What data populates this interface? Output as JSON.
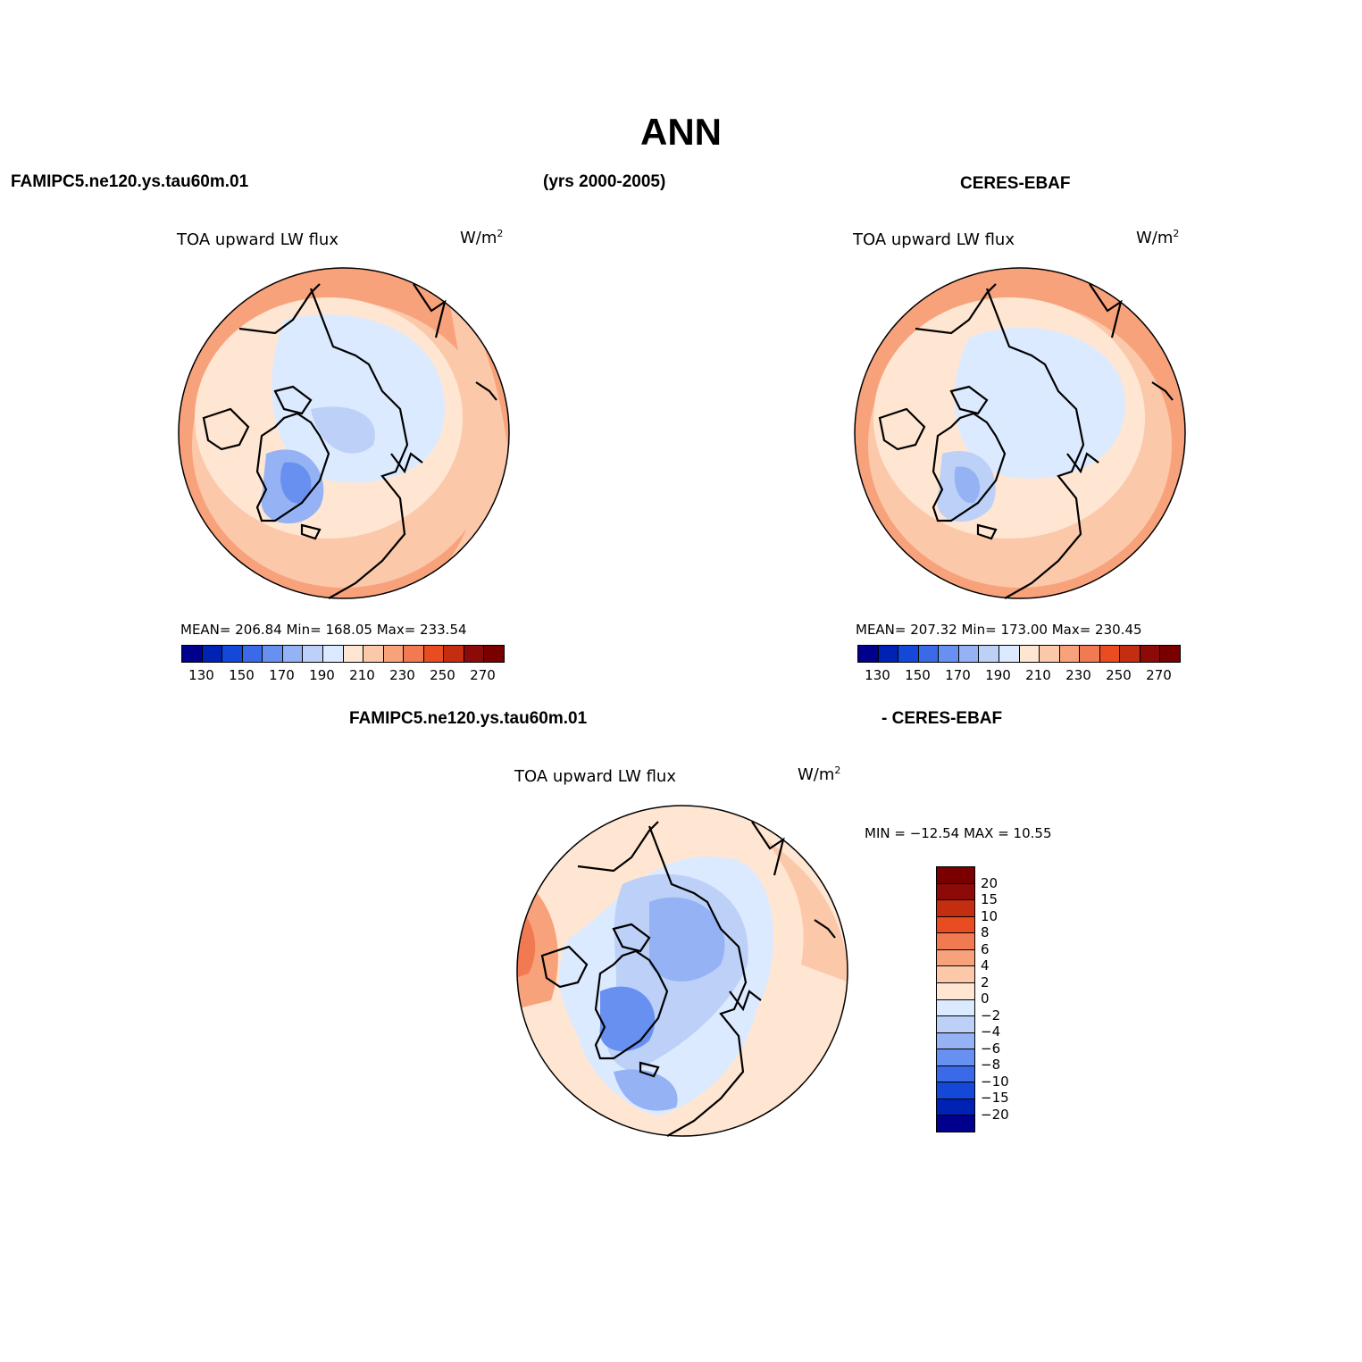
{
  "figure": {
    "title": "ANN",
    "left_header": "FAMIPC5.ne120.ys.tau60m.01",
    "years_header": "(yrs 2000-2005)",
    "right_header": "CERES-EBAF",
    "diff_header_left": "FAMIPC5.ne120.ys.tau60m.01",
    "diff_header_right": "- CERES-EBAF"
  },
  "panels": [
    {
      "id": "model",
      "variable": "TOA upward LW flux",
      "unit_base": "W/m",
      "unit_sup": "2",
      "stats_text": "MEAN= 206.84   Min= 168.05   Max= 233.54",
      "mean": 206.84,
      "min": 168.05,
      "max": 233.54
    },
    {
      "id": "obs",
      "variable": "TOA upward LW flux",
      "unit_base": "W/m",
      "unit_sup": "2",
      "stats_text": "MEAN= 207.32   Min= 173.00   Max= 230.45",
      "mean": 207.32,
      "min": 173.0,
      "max": 230.45
    },
    {
      "id": "diff",
      "variable": "TOA upward LW flux",
      "unit_base": "W/m",
      "unit_sup": "2",
      "stats_text": "MIN = −12.54 MAX =  10.55",
      "min": -12.54,
      "max": 10.55
    }
  ],
  "colorbars": {
    "abs": {
      "levels": [
        130,
        140,
        150,
        160,
        170,
        180,
        190,
        200,
        210,
        220,
        230,
        240,
        250,
        260,
        270
      ],
      "tick_labels": [
        "130",
        "150",
        "170",
        "190",
        "210",
        "230",
        "250",
        "270"
      ],
      "colors": [
        "#00008c",
        "#0022b4",
        "#1448d8",
        "#3a6ae8",
        "#6890f0",
        "#94b2f4",
        "#bcd0f8",
        "#dceaff",
        "#ffe6d2",
        "#fcc8aa",
        "#f8a27c",
        "#f27a52",
        "#e84c20",
        "#c42e10",
        "#8c0a08"
      ]
    },
    "diff": {
      "levels": [
        -20,
        -15,
        -10,
        -8,
        -6,
        -4,
        -2,
        0,
        2,
        4,
        6,
        8,
        10,
        15,
        20
      ],
      "tick_labels": [
        "−20",
        "−15",
        "−10",
        "−8",
        "−6",
        "−4",
        "−2",
        "0",
        "2",
        "4",
        "6",
        "8",
        "10",
        "15",
        "20"
      ],
      "colors": [
        "#00008c",
        "#0022b4",
        "#1448d8",
        "#3a6ae8",
        "#6890f0",
        "#94b2f4",
        "#bcd0f8",
        "#dceaff",
        "#ffe6d2",
        "#fcc8aa",
        "#f8a27c",
        "#f27a52",
        "#e84c20",
        "#c42e10",
        "#8c0a08",
        "#7a0000"
      ]
    }
  }
}
